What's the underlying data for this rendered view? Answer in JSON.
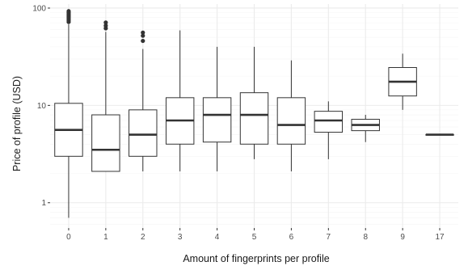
{
  "chart_data": {
    "type": "boxplot",
    "title": "",
    "xlabel": "Amount of fingerprints per profile",
    "ylabel": "Price of profile (USD)",
    "y_scale": "log10",
    "ylim": [
      0.55,
      110
    ],
    "y_ticks": [
      {
        "value": 1,
        "label": "1"
      },
      {
        "value": 10,
        "label": "10"
      },
      {
        "value": 100,
        "label": "100"
      }
    ],
    "grid": true,
    "categories": [
      "0",
      "1",
      "2",
      "3",
      "4",
      "5",
      "6",
      "7",
      "8",
      "9",
      "17"
    ],
    "boxes": [
      {
        "category": "0",
        "whisker_low": 0.7,
        "q1": 3.0,
        "median": 5.6,
        "q3": 10.5,
        "whisker_high": 68,
        "outliers": [
          72,
          75,
          78,
          81,
          84,
          87,
          90,
          93
        ]
      },
      {
        "category": "1",
        "whisker_low": 2.1,
        "q1": 2.1,
        "median": 3.5,
        "q3": 8.0,
        "whisker_high": 57,
        "outliers": [
          62,
          66,
          71
        ]
      },
      {
        "category": "2",
        "whisker_low": 2.1,
        "q1": 3.0,
        "median": 5.0,
        "q3": 9.0,
        "whisker_high": 38,
        "outliers": [
          46,
          52,
          56
        ]
      },
      {
        "category": "3",
        "whisker_low": 2.1,
        "q1": 4.0,
        "median": 7.0,
        "q3": 12.0,
        "whisker_high": 59,
        "outliers": []
      },
      {
        "category": "4",
        "whisker_low": 2.1,
        "q1": 4.2,
        "median": 8.0,
        "q3": 12.0,
        "whisker_high": 40,
        "outliers": []
      },
      {
        "category": "5",
        "whisker_low": 2.8,
        "q1": 4.0,
        "median": 8.0,
        "q3": 13.5,
        "whisker_high": 40,
        "outliers": []
      },
      {
        "category": "6",
        "whisker_low": 2.1,
        "q1": 4.0,
        "median": 6.3,
        "q3": 12.0,
        "whisker_high": 29,
        "outliers": []
      },
      {
        "category": "7",
        "whisker_low": 2.8,
        "q1": 5.3,
        "median": 7.0,
        "q3": 8.7,
        "whisker_high": 11,
        "outliers": []
      },
      {
        "category": "8",
        "whisker_low": 4.2,
        "q1": 5.5,
        "median": 6.3,
        "q3": 7.2,
        "whisker_high": 8,
        "outliers": []
      },
      {
        "category": "9",
        "whisker_low": 9.0,
        "q1": 12.5,
        "median": 17.5,
        "q3": 24.5,
        "whisker_high": 34,
        "outliers": []
      },
      {
        "category": "17",
        "whisker_low": 5.0,
        "q1": 5.0,
        "median": 5.0,
        "q3": 5.0,
        "whisker_high": 5,
        "outliers": []
      }
    ],
    "colors": {
      "panel_background": "#ffffff",
      "grid_major": "#ebebeb",
      "grid_minor": "#f5f5f5",
      "box_fill": "#ffffff",
      "box_stroke": "#333333",
      "median": "#333333",
      "outlier": "#333333",
      "tick_text": "#4d4d4d",
      "title_text": "#1a1a1a"
    }
  }
}
